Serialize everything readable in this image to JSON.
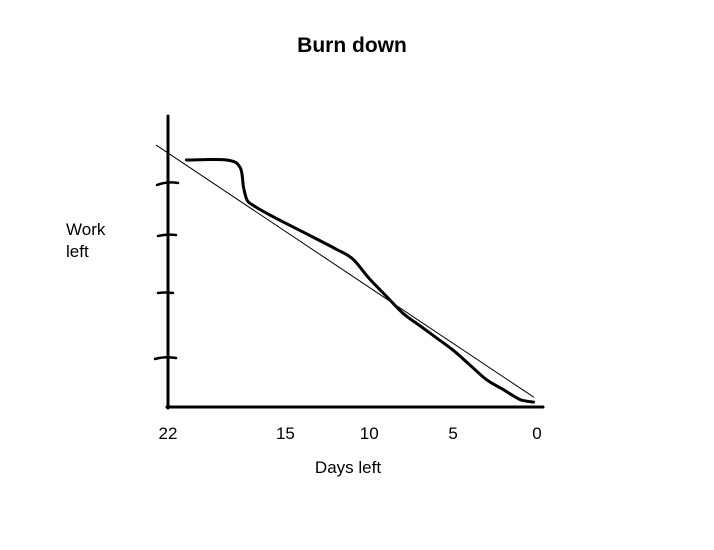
{
  "chart_data": {
    "type": "line",
    "title": "Burn down",
    "xlabel": "Days left",
    "ylabel_lines": [
      "Work",
      "left"
    ],
    "x_ticks": [
      22,
      15,
      10,
      5,
      0
    ],
    "x_reversed": true,
    "xlim": [
      22,
      0
    ],
    "ylim": [
      0,
      100
    ],
    "grid": false,
    "series": [
      {
        "style": "thin",
        "x": [
          22.7,
          0.2
        ],
        "y": [
          106,
          4
        ]
      },
      {
        "style": "thick",
        "x": [
          20.9,
          18.5,
          17.7,
          17.5,
          17.3,
          17.0,
          16.0,
          14.0,
          12.0,
          11.0,
          10.0,
          9.0,
          8.0,
          7.0,
          6.0,
          5.0,
          4.0,
          3.0,
          2.0,
          1.0,
          0.2
        ],
        "y": [
          100,
          100,
          97,
          89,
          84,
          82,
          78,
          71,
          64,
          60,
          52,
          45,
          38,
          33,
          28,
          23,
          17,
          11,
          7,
          3,
          2
        ]
      }
    ]
  }
}
